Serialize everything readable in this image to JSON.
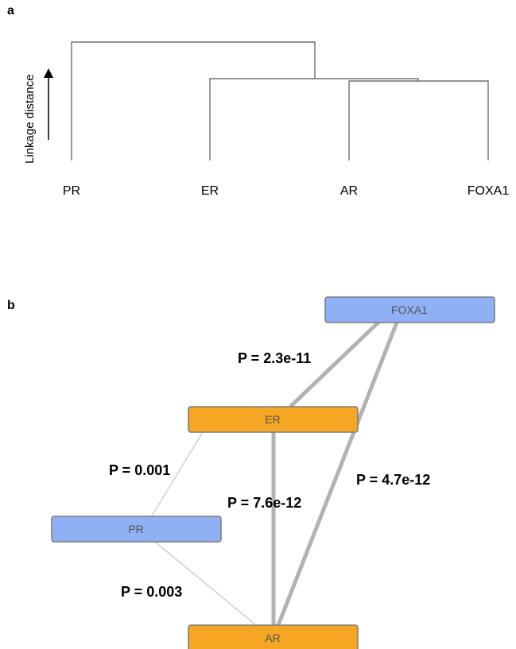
{
  "colors": {
    "node_blue": "#8fb0f5",
    "node_orange": "#f5a623",
    "node_border": "#7a7a7a",
    "edge_gray": "#b3b3b3",
    "edge_light": "#cfcfcf"
  },
  "panel_a": {
    "label": "a",
    "axis_label": "Linkage distance",
    "leaves": [
      "PR",
      "ER",
      "AR",
      "FOXA1"
    ]
  },
  "panel_b": {
    "label": "b",
    "nodes": {
      "foxa1": {
        "label": "FOXA1",
        "color": "blue"
      },
      "er": {
        "label": "ER",
        "color": "orange"
      },
      "pr": {
        "label": "PR",
        "color": "blue"
      },
      "ar": {
        "label": "AR",
        "color": "orange"
      }
    },
    "edges": {
      "er_foxa1": {
        "from": "ER",
        "to": "FOXA1",
        "p_label": "P = 2.3e-11"
      },
      "er_pr": {
        "from": "ER",
        "to": "PR",
        "p_label": "P = 0.001"
      },
      "er_ar": {
        "from": "ER",
        "to": "AR",
        "p_label": "P = 7.6e-12"
      },
      "ar_foxa1": {
        "from": "AR",
        "to": "FOXA1",
        "p_label": "P = 4.7e-12"
      },
      "pr_ar": {
        "from": "PR",
        "to": "AR",
        "p_label": "P = 0.003"
      }
    }
  }
}
